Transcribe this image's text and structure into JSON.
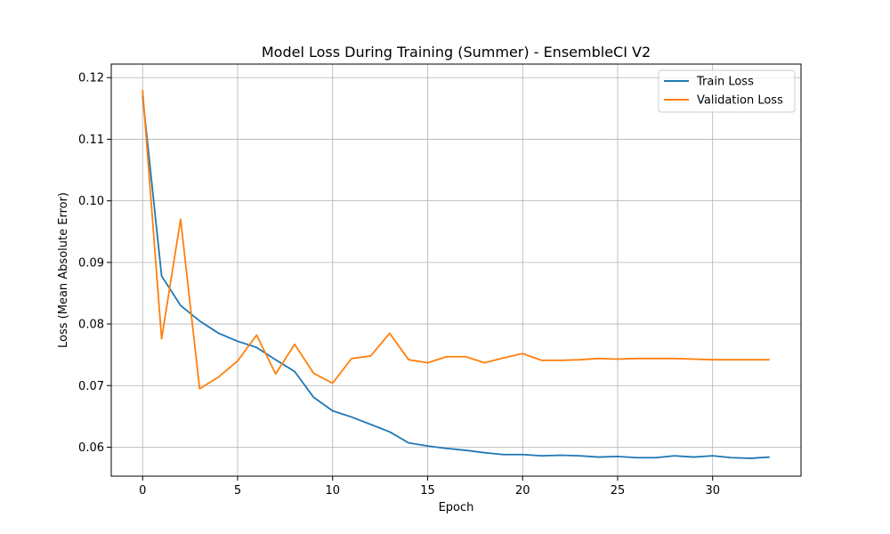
{
  "chart_data": {
    "type": "line",
    "title": "Model Loss During Training (Summer) - EnsembleCI V2",
    "xlabel": "Epoch",
    "ylabel": "Loss (Mean Absolute Error)",
    "xlim": [
      -1.65,
      34.65
    ],
    "ylim": [
      0.0553,
      0.1222
    ],
    "xticks": [
      0,
      5,
      10,
      15,
      20,
      25,
      30
    ],
    "xtick_labels": [
      "0",
      "5",
      "10",
      "15",
      "20",
      "25",
      "30"
    ],
    "yticks": [
      0.06,
      0.07,
      0.08,
      0.09,
      0.1,
      0.11,
      0.12
    ],
    "ytick_labels": [
      "0.06",
      "0.07",
      "0.08",
      "0.09",
      "0.10",
      "0.11",
      "0.12"
    ],
    "grid": true,
    "legend_position": "top-right",
    "series": [
      {
        "name": "Train Loss",
        "color": "#1f77b4",
        "x": [
          0,
          1,
          2,
          3,
          4,
          5,
          6,
          7,
          8,
          9,
          10,
          11,
          12,
          13,
          14,
          15,
          16,
          17,
          18,
          19,
          20,
          21,
          22,
          23,
          24,
          25,
          26,
          27,
          28,
          29,
          30,
          31,
          32,
          33
        ],
        "values": [
          0.117,
          0.0878,
          0.083,
          0.0805,
          0.0785,
          0.0772,
          0.0762,
          0.0742,
          0.0723,
          0.0681,
          0.0659,
          0.0649,
          0.0637,
          0.0625,
          0.0607,
          0.0602,
          0.0598,
          0.0595,
          0.0591,
          0.0588,
          0.0588,
          0.0586,
          0.0587,
          0.0586,
          0.0584,
          0.0585,
          0.0583,
          0.0583,
          0.0586,
          0.0584,
          0.0586,
          0.0583,
          0.0582,
          0.0584
        ]
      },
      {
        "name": "Validation Loss",
        "color": "#ff7f0e",
        "x": [
          0,
          1,
          2,
          3,
          4,
          5,
          6,
          7,
          8,
          9,
          10,
          11,
          12,
          13,
          14,
          15,
          16,
          17,
          18,
          19,
          20,
          21,
          22,
          23,
          24,
          25,
          26,
          27,
          28,
          29,
          30,
          31,
          32,
          33
        ],
        "values": [
          0.118,
          0.0776,
          0.097,
          0.0695,
          0.0714,
          0.074,
          0.0782,
          0.0719,
          0.0767,
          0.072,
          0.0704,
          0.0744,
          0.0748,
          0.0785,
          0.0742,
          0.0737,
          0.0747,
          0.0747,
          0.0737,
          0.0745,
          0.0752,
          0.0741,
          0.0741,
          0.0742,
          0.0744,
          0.0743,
          0.0744,
          0.0744,
          0.0744,
          0.0743,
          0.0742,
          0.0742,
          0.0742,
          0.0742
        ]
      }
    ]
  }
}
